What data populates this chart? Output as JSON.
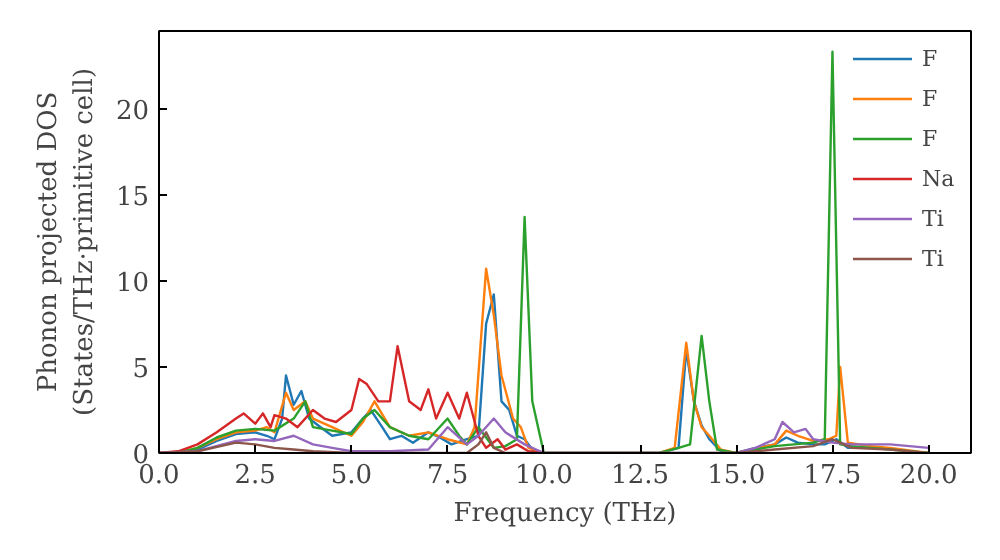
{
  "chart_data": {
    "type": "line",
    "xlabel": "Frequency (THz)",
    "ylabel": "Phonon projected DOS\n(States/THz·primitive cell)",
    "xlim": [
      0,
      21.1
    ],
    "ylim": [
      0,
      24.5
    ],
    "xticks": [
      {
        "value": 0,
        "label": "0.0"
      },
      {
        "value": 2.5,
        "label": "2.5"
      },
      {
        "value": 5,
        "label": "5.0"
      },
      {
        "value": 7.5,
        "label": "7.5"
      },
      {
        "value": 10,
        "label": "10.0"
      },
      {
        "value": 12.5,
        "label": "12.5"
      },
      {
        "value": 15,
        "label": "15.0"
      },
      {
        "value": 17.5,
        "label": "17.5"
      },
      {
        "value": 20,
        "label": "20.0"
      }
    ],
    "yticks": [
      0,
      5,
      10,
      15,
      20
    ],
    "grid": false,
    "legend": "top right",
    "series": [
      {
        "name": "F",
        "color": "#1f77b4",
        "x": [
          0,
          0.5,
          1,
          1.5,
          2,
          2.5,
          2.8,
          3,
          3.2,
          3.3,
          3.5,
          3.7,
          3.9,
          4.2,
          4.5,
          5,
          5.3,
          5.5,
          5.8,
          6,
          6.3,
          6.6,
          7,
          7.3,
          7.6,
          8,
          8.3,
          8.5,
          8.7,
          8.9,
          9.1,
          9.3,
          9.5,
          9.7,
          10,
          11,
          13,
          13.5,
          13.7,
          13.9,
          14.1,
          14.3,
          14.6,
          15,
          15.5,
          16,
          16.3,
          16.6,
          17,
          17.3,
          17.6,
          17.9,
          18.5
        ],
        "values": [
          0,
          0,
          0.2,
          0.7,
          1.1,
          1.2,
          1.0,
          0.8,
          2.0,
          4.5,
          2.8,
          3.6,
          2.0,
          1.5,
          1.0,
          1.2,
          2.0,
          2.5,
          1.5,
          0.8,
          1.0,
          0.6,
          1.2,
          0.9,
          0.5,
          0.8,
          1.0,
          7.5,
          9.2,
          3.0,
          2.5,
          1.0,
          0.8,
          0.2,
          0,
          0,
          0,
          0.3,
          6.0,
          3.0,
          1.6,
          0.8,
          0.1,
          0,
          0.3,
          0.5,
          0.9,
          0.6,
          0.5,
          0.5,
          0.8,
          0.3,
          0.3
        ]
      },
      {
        "name": "F",
        "color": "#ff7f0e",
        "x": [
          0,
          0.5,
          1,
          1.5,
          2,
          2.5,
          2.8,
          3,
          3.3,
          3.5,
          3.8,
          4,
          4.5,
          5,
          5.3,
          5.6,
          6,
          6.5,
          7,
          7.5,
          8,
          8.2,
          8.5,
          8.7,
          8.9,
          9.2,
          9.4,
          9.6,
          10,
          13,
          13.4,
          13.7,
          13.9,
          14.1,
          14.3,
          14.6,
          15,
          16,
          16.3,
          16.6,
          17,
          17.4,
          17.6,
          17.7,
          17.9,
          18.5,
          19,
          20
        ],
        "values": [
          0,
          0,
          0.3,
          0.8,
          1.2,
          1.3,
          1.5,
          1.2,
          3.5,
          2.5,
          3.0,
          2.0,
          1.5,
          1.0,
          1.8,
          3.0,
          1.5,
          1.0,
          1.2,
          0.8,
          0.5,
          1.5,
          10.7,
          8.0,
          4.5,
          2.0,
          1.5,
          0.3,
          0,
          0,
          0.3,
          6.4,
          3.0,
          1.5,
          1.0,
          0.2,
          0,
          0.5,
          1.3,
          1.0,
          0.7,
          0.8,
          1.0,
          5.0,
          0.6,
          0.4,
          0.3,
          0
        ]
      },
      {
        "name": "F",
        "color": "#2ca02c",
        "x": [
          0,
          0.5,
          1,
          1.5,
          2,
          2.5,
          3,
          3.5,
          3.8,
          4,
          4.5,
          5,
          5.3,
          5.6,
          6,
          6.5,
          7,
          7.5,
          7.8,
          8,
          8.3,
          8.7,
          9,
          9.3,
          9.5,
          9.7,
          10,
          13,
          13.5,
          13.8,
          14.1,
          14.3,
          14.5,
          15,
          16,
          16.5,
          17,
          17.3,
          17.5,
          17.7,
          18,
          18.5,
          19,
          20
        ],
        "values": [
          0,
          0,
          0.3,
          0.9,
          1.3,
          1.4,
          1.3,
          2.0,
          3.0,
          1.5,
          1.3,
          1.1,
          2.0,
          2.5,
          1.5,
          1.0,
          0.8,
          2.0,
          1.0,
          0.5,
          1.5,
          0.3,
          0.4,
          0.8,
          13.7,
          3.0,
          0,
          0,
          0.3,
          0.5,
          6.8,
          3.0,
          0.2,
          0,
          0.4,
          0.5,
          0.6,
          0.8,
          23.3,
          0.5,
          0.4,
          0.3,
          0.2,
          0
        ]
      },
      {
        "name": "Na",
        "color": "#d62728",
        "x": [
          0,
          0.5,
          1,
          1.5,
          2,
          2.2,
          2.5,
          2.7,
          2.9,
          3,
          3.3,
          3.6,
          4,
          4.3,
          4.6,
          5,
          5.2,
          5.4,
          5.7,
          6,
          6.2,
          6.5,
          6.8,
          7,
          7.2,
          7.5,
          7.8,
          8,
          8.3,
          8.5,
          8.8,
          9,
          9.3,
          9.6,
          10
        ],
        "values": [
          0,
          0.1,
          0.5,
          1.2,
          2.0,
          2.3,
          1.7,
          2.3,
          1.5,
          2.2,
          2.0,
          1.5,
          2.5,
          2.0,
          1.8,
          2.5,
          4.3,
          4.0,
          3.0,
          3.0,
          6.2,
          3.0,
          2.5,
          3.7,
          2.0,
          3.5,
          2.0,
          3.5,
          1.0,
          0.3,
          0.8,
          0.2,
          0.5,
          0.1,
          0
        ]
      },
      {
        "name": "Ti",
        "color": "#9467bd",
        "x": [
          0,
          1,
          2,
          2.5,
          3,
          3.5,
          4,
          4.5,
          5,
          6,
          7,
          7.5,
          8,
          8.3,
          8.7,
          9,
          9.5,
          10,
          15,
          15.5,
          16,
          16.2,
          16.5,
          16.8,
          17,
          17.5,
          18,
          19,
          20
        ],
        "values": [
          0,
          0.1,
          0.7,
          0.8,
          0.7,
          1.0,
          0.5,
          0.3,
          0.1,
          0.1,
          0.2,
          1.5,
          0.5,
          1.0,
          2.0,
          1.2,
          0.5,
          0,
          0,
          0.3,
          0.8,
          1.8,
          1.2,
          1.4,
          0.8,
          0.6,
          0.5,
          0.5,
          0.3
        ]
      },
      {
        "name": "Ti",
        "color": "#8c564b",
        "x": [
          0,
          1,
          2,
          2.5,
          3,
          3.5,
          4,
          5,
          6,
          8,
          8.3,
          8.5,
          8.7,
          9,
          10,
          15,
          16,
          17,
          17.5,
          18,
          19,
          20
        ],
        "values": [
          0,
          0.1,
          0.6,
          0.5,
          0.3,
          0.2,
          0.1,
          0,
          0,
          0,
          0.5,
          1.2,
          0.3,
          0,
          0,
          0,
          0.2,
          0.4,
          0.8,
          0.3,
          0.2,
          0
        ]
      }
    ]
  }
}
